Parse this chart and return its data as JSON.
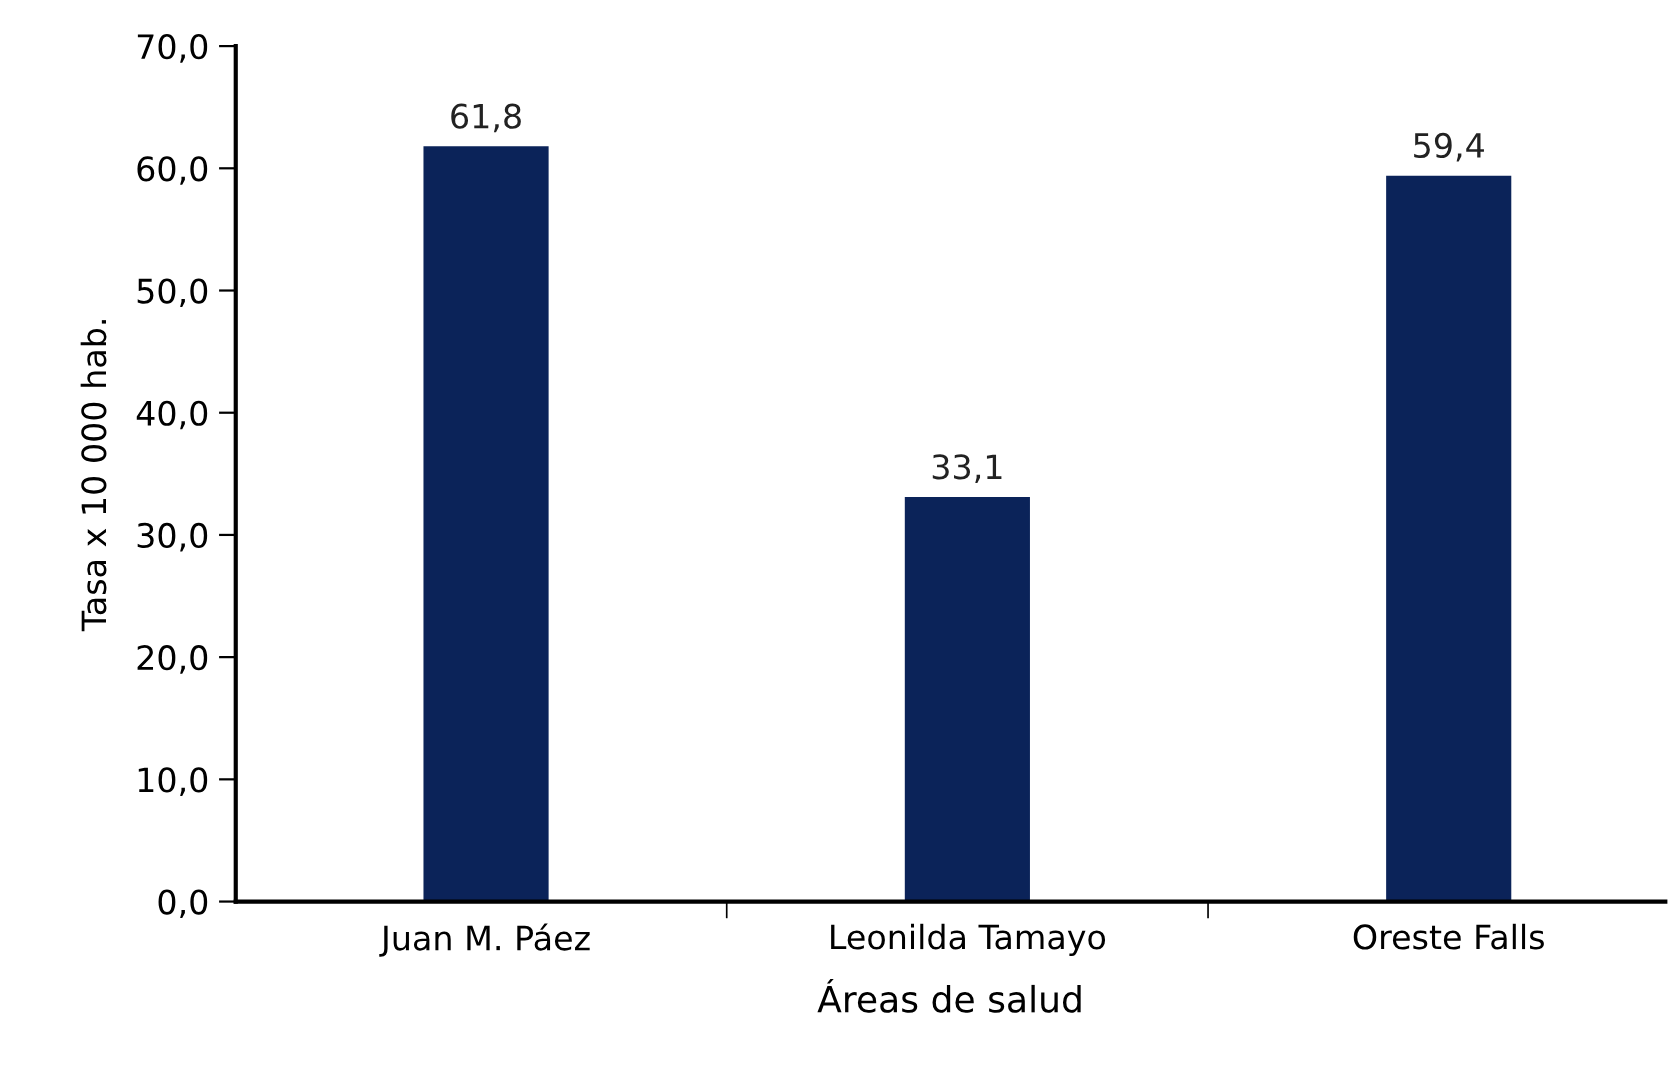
{
  "chart_data": {
    "type": "bar",
    "xlabel": "Áreas de salud",
    "ylabel": "Tasa x 10 000 hab.",
    "categories": [
      "Juan M. Páez",
      "Leonilda Tamayo",
      "Oreste Falls"
    ],
    "values": [
      61.8,
      33.1,
      59.4
    ],
    "value_labels": [
      "61,8",
      "33,1",
      "59,4"
    ],
    "color": "#0b2359",
    "ylim": [
      0,
      70
    ],
    "yticks": [
      {
        "value": 0,
        "label": "0,0"
      },
      {
        "value": 10,
        "label": "10,0"
      },
      {
        "value": 20,
        "label": "20,0"
      },
      {
        "value": 30,
        "label": "30,0"
      },
      {
        "value": 40,
        "label": "40,0"
      },
      {
        "value": 50,
        "label": "50,0"
      },
      {
        "value": 60,
        "label": "60,0"
      },
      {
        "value": 70,
        "label": "70,0"
      }
    ],
    "grid": false
  }
}
